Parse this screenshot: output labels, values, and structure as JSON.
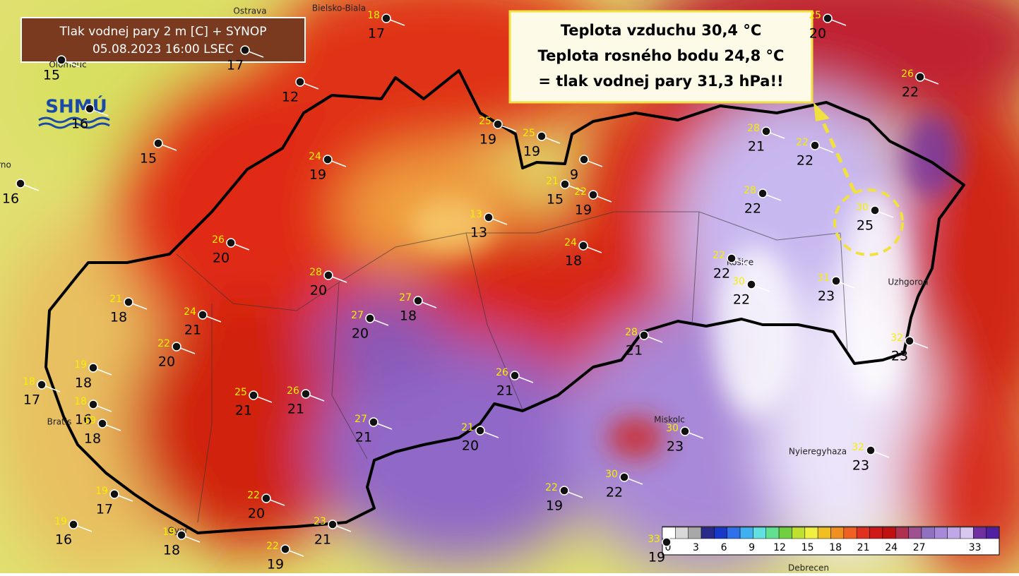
{
  "title": {
    "line1": "Tlak vodnej pary 2 m [C] + SYNOP",
    "line2": "05.08.2023 16:00 LSEC"
  },
  "logo": "SHMÚ",
  "callout": {
    "lines": [
      "Teplota vzduchu 30,4 °C",
      "Teplota rosného bodu 24,8 °C",
      "= tlak vodnej pary 31,3 hPa!!"
    ]
  },
  "cities": [
    "Ostrava",
    "Bielsko-Biala",
    "Olomouc",
    "rno",
    "Košice",
    "Uzhgorod",
    "Miskolc",
    "Nyieregyhaza",
    "Gyor",
    "Debrecen",
    "Bratis"
  ],
  "stations": [
    {
      "top": 18,
      "bottom": 17
    },
    {
      "bottom": 17
    },
    {
      "bottom": 15
    },
    {
      "bottom": 12
    },
    {
      "bottom": 16
    },
    {
      "bottom": 15
    },
    {
      "bottom": 16
    },
    {
      "top": 25,
      "bottom": 19
    },
    {
      "top": 25,
      "bottom": 19
    },
    {
      "top": 24,
      "bottom": 19
    },
    {
      "bottom": 9
    },
    {
      "top": 21,
      "bottom": 15
    },
    {
      "top": 22,
      "bottom": 19
    },
    {
      "top": 13,
      "bottom": 13
    },
    {
      "top": 24,
      "bottom": 18
    },
    {
      "top": 26,
      "bottom": 20
    },
    {
      "top": 28,
      "bottom": 20
    },
    {
      "top": 27,
      "bottom": 18
    },
    {
      "top": 21,
      "bottom": 18
    },
    {
      "top": 24,
      "bottom": 21
    },
    {
      "top": 27,
      "bottom": 20
    },
    {
      "top": 22,
      "bottom": 20
    },
    {
      "top": 19,
      "bottom": 18
    },
    {
      "top": 18,
      "bottom": 17
    },
    {
      "top": 25,
      "bottom": 21
    },
    {
      "top": 26,
      "bottom": 21
    },
    {
      "top": 18,
      "bottom": 16
    },
    {
      "top": 19,
      "bottom": 18
    },
    {
      "top": 26,
      "bottom": 21
    },
    {
      "top": 27,
      "bottom": 21
    },
    {
      "top": 21,
      "bottom": 20
    },
    {
      "top": 19,
      "bottom": 17
    },
    {
      "top": 22,
      "bottom": 20
    },
    {
      "top": 19,
      "bottom": 16
    },
    {
      "top": 23,
      "bottom": 21
    },
    {
      "top": 19,
      "bottom": 18
    },
    {
      "top": 22,
      "bottom": 19
    },
    {
      "top": 28,
      "bottom": 21
    },
    {
      "top": 22,
      "bottom": 22
    },
    {
      "top": 28,
      "bottom": 22
    },
    {
      "top": 30,
      "bottom": 25
    },
    {
      "top": 22,
      "bottom": 22
    },
    {
      "top": 30,
      "bottom": 22
    },
    {
      "top": 31,
      "bottom": 23
    },
    {
      "top": 28,
      "bottom": 21
    },
    {
      "top": 32,
      "bottom": 23
    },
    {
      "top": 30,
      "bottom": 23
    },
    {
      "top": 32,
      "bottom": 23
    },
    {
      "top": 30,
      "bottom": 22
    },
    {
      "top": 22,
      "bottom": 19
    },
    {
      "top": 25,
      "bottom": 20
    },
    {
      "top": 26,
      "bottom": 22
    },
    {
      "top": 33,
      "bottom": 19
    }
  ],
  "colorbar": {
    "ticks": [
      0,
      3,
      6,
      9,
      12,
      15,
      18,
      21,
      24,
      27,
      33
    ],
    "colors": [
      "#ffffff",
      "#d8d8d8",
      "#a8a8a8",
      "#2a2a8a",
      "#1838c8",
      "#3070e8",
      "#40b0f0",
      "#60e0e0",
      "#60e090",
      "#70d040",
      "#c0e030",
      "#f0f040",
      "#f0c020",
      "#f09020",
      "#f06020",
      "#e03020",
      "#d01818",
      "#c01010",
      "#b03050",
      "#a05090",
      "#9070c0",
      "#a888d8",
      "#c0a8e8",
      "#d8c8f0",
      "#7030a0",
      "#5020a0"
    ]
  }
}
